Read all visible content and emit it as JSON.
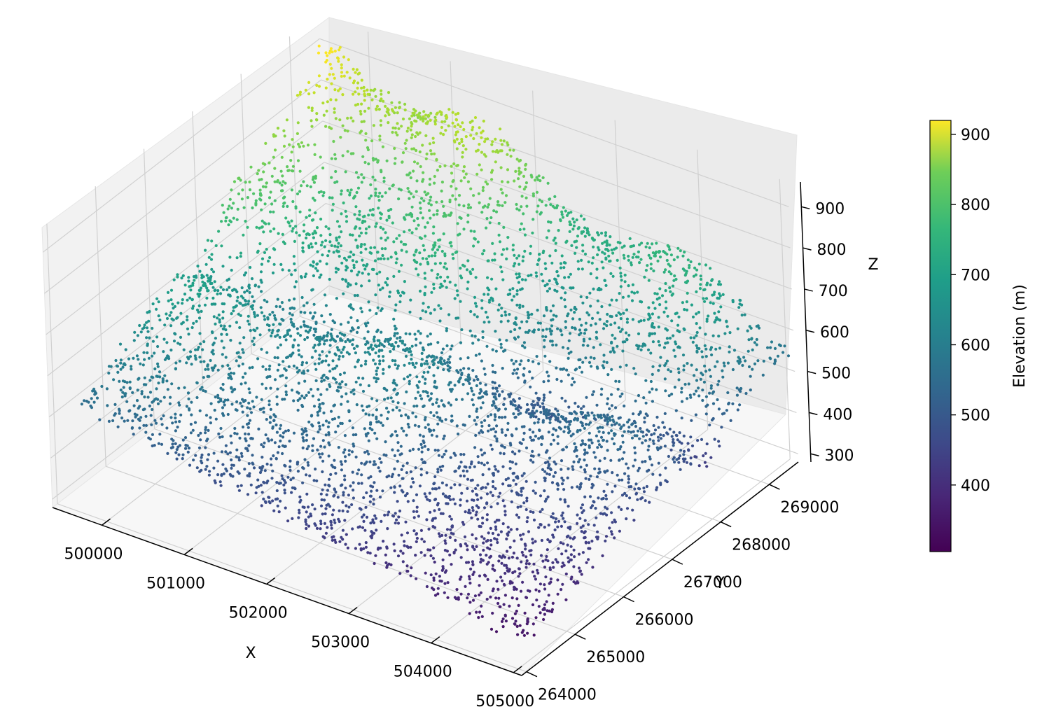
{
  "chart_data": {
    "type": "scatter",
    "dimensions": "3d",
    "title": "",
    "xlabel": "X",
    "ylabel": "Y",
    "zlabel": "Z",
    "x_ticks": [
      "500000",
      "501000",
      "502000",
      "503000",
      "504000",
      "505000"
    ],
    "y_ticks": [
      "264000",
      "265000",
      "266000",
      "267000",
      "268000",
      "269000"
    ],
    "z_ticks": [
      "300",
      "400",
      "500",
      "600",
      "700",
      "800",
      "900"
    ],
    "xlim": [
      499400,
      505100
    ],
    "ylim": [
      263900,
      269600
    ],
    "zlim": [
      280,
      960
    ],
    "grid": true,
    "colormap": "viridis",
    "colorbar": {
      "label": "Elevation (m)",
      "ticks": [
        "400",
        "500",
        "600",
        "700",
        "800",
        "900"
      ],
      "range": [
        305,
        920
      ]
    },
    "surface_description": "LiDAR point cloud of terrain: high ridge (~900 m) along the back-left edge near x 500000-502000, y 268000-269500, sloping down to ~320 m at the front-right near x 504000, y 264000; with a diagonal valley and ridges crossing the surface.",
    "approx_points": [
      {
        "x": 499700,
        "y": 268700,
        "z": 820
      },
      {
        "x": 500500,
        "y": 269300,
        "z": 860
      },
      {
        "x": 501300,
        "y": 269400,
        "z": 905
      },
      {
        "x": 502000,
        "y": 269300,
        "z": 780
      },
      {
        "x": 502800,
        "y": 269200,
        "z": 720
      },
      {
        "x": 503600,
        "y": 269100,
        "z": 610
      },
      {
        "x": 504400,
        "y": 268900,
        "z": 480
      },
      {
        "x": 505000,
        "y": 268600,
        "z": 420
      },
      {
        "x": 500000,
        "y": 266800,
        "z": 640
      },
      {
        "x": 501000,
        "y": 266500,
        "z": 560
      },
      {
        "x": 502500,
        "y": 266500,
        "z": 480
      },
      {
        "x": 504000,
        "y": 266800,
        "z": 380
      },
      {
        "x": 501500,
        "y": 265000,
        "z": 520
      },
      {
        "x": 503000,
        "y": 264600,
        "z": 390
      },
      {
        "x": 504300,
        "y": 264200,
        "z": 320
      }
    ]
  }
}
